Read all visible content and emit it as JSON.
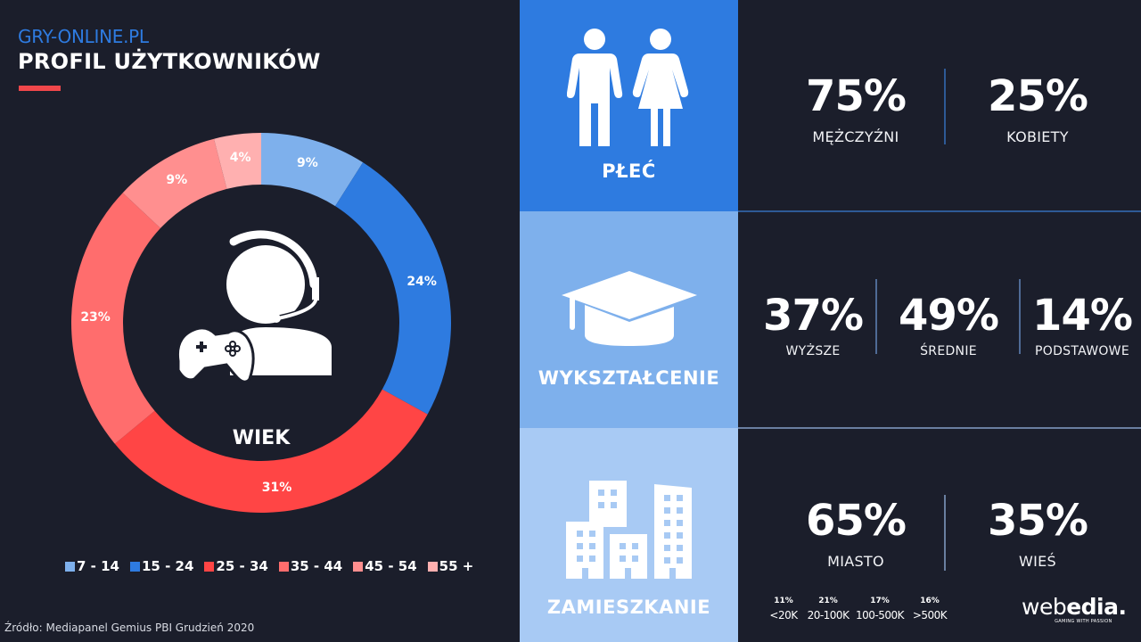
{
  "header": {
    "brand": "GRY-ONLINE.PL",
    "title": "PROFIL UŻYTKOWNIKÓW",
    "accent_color": "#f0474b"
  },
  "age": {
    "center_label": "WIEK",
    "icon": "gamer-headset-controller-icon"
  },
  "legend": [
    {
      "label": "7 - 14",
      "color": "#7eb0ec"
    },
    {
      "label": "15 - 24",
      "color": "#2e7be0"
    },
    {
      "label": "25 - 34",
      "color": "#ff4545"
    },
    {
      "label": "35 - 44",
      "color": "#ff6d6d"
    },
    {
      "label": "45 - 54",
      "color": "#ff8f8f"
    },
    {
      "label": "55 +",
      "color": "#ffb0b0"
    }
  ],
  "chart_data": [
    {
      "type": "pie",
      "title": "WIEK",
      "subtype": "donut",
      "categories": [
        "7 - 14",
        "15 - 24",
        "25 - 34",
        "35 - 44",
        "45 - 54",
        "55 +"
      ],
      "values": [
        9,
        24,
        31,
        23,
        9,
        4
      ],
      "labels": [
        "9%",
        "24%",
        "31%",
        "23%",
        "9%",
        "4%"
      ],
      "colors": [
        "#7eb0ec",
        "#2e7be0",
        "#ff4545",
        "#ff6d6d",
        "#ff8f8f",
        "#ffb0b0"
      ],
      "legend_position": "bottom"
    },
    {
      "type": "table",
      "title": "PŁEĆ",
      "categories": [
        "MĘŻCZYŹNI",
        "KOBIETY"
      ],
      "values": [
        75,
        25
      ]
    },
    {
      "type": "table",
      "title": "WYKSZTAŁCENIE",
      "categories": [
        "WYŻSZE",
        "ŚREDNIE",
        "PODSTAWOWE"
      ],
      "values": [
        37,
        49,
        14
      ]
    },
    {
      "type": "table",
      "title": "ZAMIESZKANIE",
      "categories": [
        "MIASTO",
        "WIEŚ"
      ],
      "values": [
        65,
        35
      ],
      "city_breakdown": {
        "categories": [
          "<20K",
          "20-100K",
          "100-500K",
          ">500K"
        ],
        "values": [
          11,
          21,
          17,
          16
        ]
      }
    }
  ],
  "panels": {
    "gender": {
      "label": "PŁEĆ",
      "icon": "man-woman-icon",
      "color": "#2e7be0",
      "stats": [
        {
          "value": "75%",
          "label": "MĘŻCZYŹNI"
        },
        {
          "value": "25%",
          "label": "KOBIETY"
        }
      ]
    },
    "education": {
      "label": "WYKSZTAŁCENIE",
      "icon": "graduation-cap-icon",
      "color": "#7eb0ec",
      "stats": [
        {
          "value": "37%",
          "label": "WYŻSZE"
        },
        {
          "value": "49%",
          "label": "ŚREDNIE"
        },
        {
          "value": "14%",
          "label": "PODSTAWOWE"
        }
      ]
    },
    "residence": {
      "label": "ZAMIESZKANIE",
      "icon": "city-buildings-icon",
      "color": "#a8caf4",
      "stats": [
        {
          "value": "65%",
          "label": "MIASTO"
        },
        {
          "value": "35%",
          "label": "WIEŚ"
        }
      ],
      "city_sizes": [
        {
          "value": "11%",
          "label": "<20K"
        },
        {
          "value": "21%",
          "label": "20-100K"
        },
        {
          "value": "17%",
          "label": "100-500K"
        },
        {
          "value": "16%",
          "label": ">500K"
        }
      ]
    }
  },
  "footer": {
    "source": "Źródło: Mediapanel Gemius PBI Grudzień 2020",
    "logo_light": "web",
    "logo_bold": "edia.",
    "logo_tagline": "GAMING WITH PASSION"
  }
}
